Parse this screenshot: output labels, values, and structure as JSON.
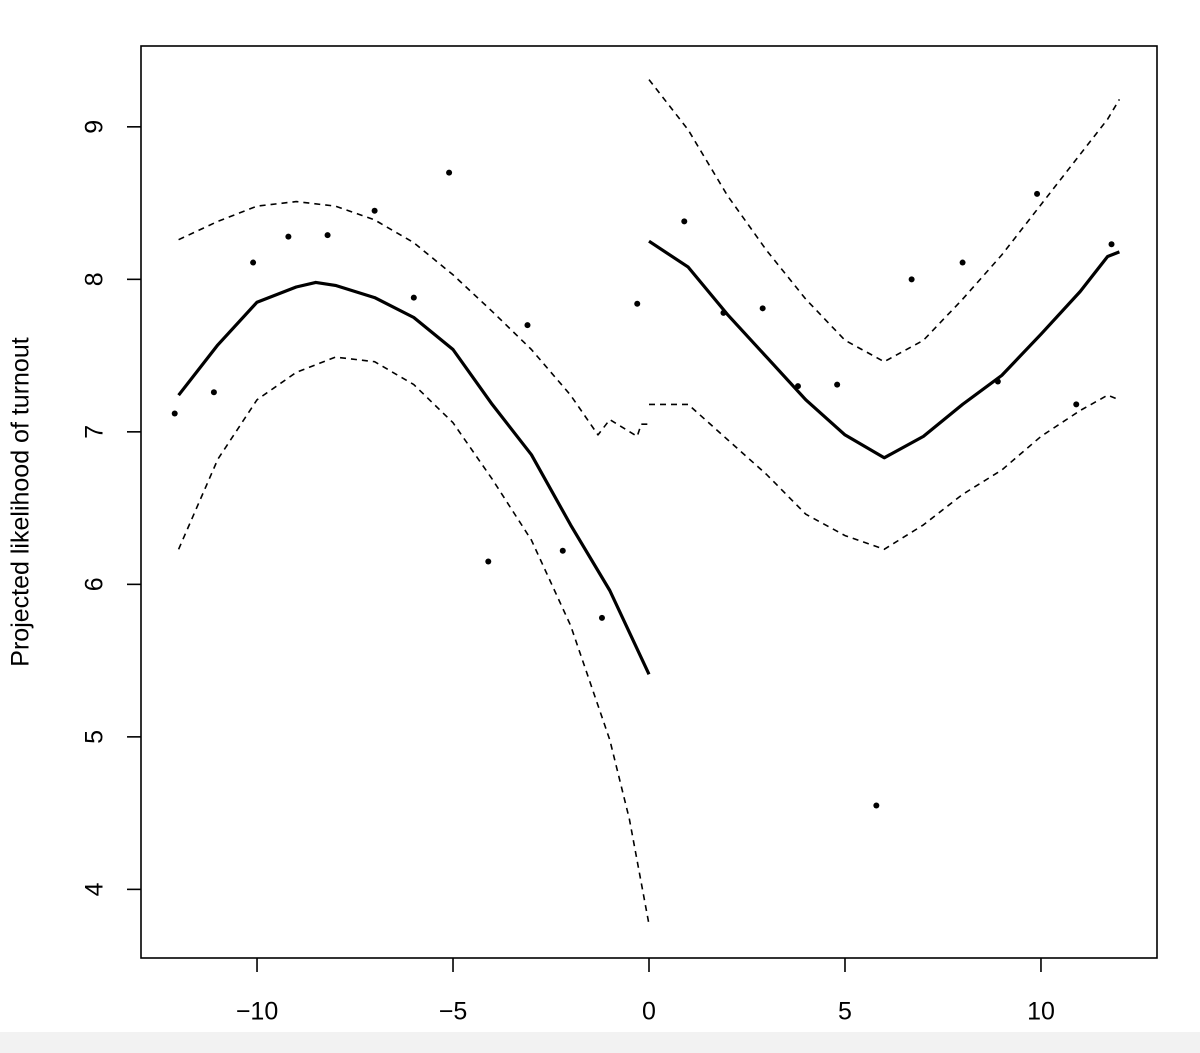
{
  "chart_data": {
    "type": "scatter",
    "ylabel": "Projected likelihood of turnout",
    "xlim": [
      -12.96,
      12.96
    ],
    "ylim": [
      3.55,
      9.53
    ],
    "xticks": [
      {
        "value": -10,
        "label": "−10"
      },
      {
        "value": -5,
        "label": "−5"
      },
      0,
      5,
      10
    ],
    "yticks": [
      4,
      5,
      6,
      7,
      8,
      9
    ],
    "grid": false,
    "color": "#000000",
    "points": {
      "x": [
        -12.1,
        -11.1,
        -10.1,
        -9.2,
        -8.2,
        -7.0,
        -6.0,
        -5.1,
        -4.1,
        -3.1,
        -2.2,
        -1.2,
        -0.3,
        0.9,
        1.9,
        2.9,
        3.8,
        4.8,
        5.8,
        6.7,
        8.0,
        8.9,
        9.9,
        10.9,
        11.8
      ],
      "y": [
        7.12,
        7.26,
        8.11,
        8.28,
        8.29,
        8.45,
        7.88,
        8.7,
        6.15,
        7.7,
        6.22,
        5.78,
        7.84,
        8.38,
        7.78,
        7.81,
        7.3,
        7.31,
        4.55,
        8.0,
        8.11,
        7.33,
        8.56,
        7.18,
        8.23
      ]
    },
    "lines": [
      {
        "style": "solid",
        "x": [
          -12,
          -11,
          -10,
          -9,
          -8.5,
          -8,
          -7,
          -6,
          -5,
          -4,
          -3,
          -2,
          -1,
          0
        ],
        "y": [
          7.24,
          7.57,
          7.85,
          7.95,
          7.98,
          7.96,
          7.88,
          7.75,
          7.54,
          7.18,
          6.85,
          6.39,
          5.96,
          5.41
        ]
      },
      {
        "style": "dashed",
        "x": [
          -12,
          -11,
          -10,
          -9,
          -8,
          -7,
          -6,
          -5,
          -4,
          -3,
          -2,
          -1.3,
          -1,
          -0.3,
          -0.2,
          0
        ],
        "y": [
          8.26,
          8.38,
          8.48,
          8.51,
          8.48,
          8.39,
          8.24,
          8.03,
          7.79,
          7.54,
          7.24,
          6.98,
          7.08,
          6.97,
          7.05,
          7.05
        ]
      },
      {
        "style": "dashed",
        "x": [
          -12,
          -11,
          -10,
          -9,
          -8,
          -7,
          -6,
          -5,
          -4,
          -3,
          -2,
          -1,
          -0.5,
          0
        ],
        "y": [
          6.23,
          6.82,
          7.21,
          7.39,
          7.49,
          7.46,
          7.31,
          7.06,
          6.69,
          6.29,
          5.73,
          4.98,
          4.46,
          3.77
        ]
      },
      {
        "style": "solid",
        "x": [
          0,
          1,
          2,
          3,
          4,
          5,
          6,
          7,
          8,
          9,
          10,
          11,
          11.7,
          12
        ],
        "y": [
          8.25,
          8.08,
          7.77,
          7.49,
          7.21,
          6.98,
          6.83,
          6.97,
          7.18,
          7.37,
          7.64,
          7.92,
          8.15,
          8.18
        ]
      },
      {
        "style": "dashed",
        "x": [
          0,
          1,
          2,
          3,
          4,
          5,
          6,
          7,
          8,
          9,
          10,
          11,
          11.7,
          12
        ],
        "y": [
          9.31,
          8.98,
          8.55,
          8.19,
          7.87,
          7.6,
          7.46,
          7.6,
          7.87,
          8.16,
          8.49,
          8.82,
          9.05,
          9.18
        ]
      },
      {
        "style": "dashed",
        "x": [
          0,
          1,
          2,
          3,
          4,
          5,
          6,
          7,
          8,
          9,
          10,
          11,
          11.7,
          12
        ],
        "y": [
          7.18,
          7.18,
          6.95,
          6.72,
          6.46,
          6.32,
          6.23,
          6.39,
          6.59,
          6.75,
          6.97,
          7.14,
          7.24,
          7.21
        ]
      }
    ]
  }
}
